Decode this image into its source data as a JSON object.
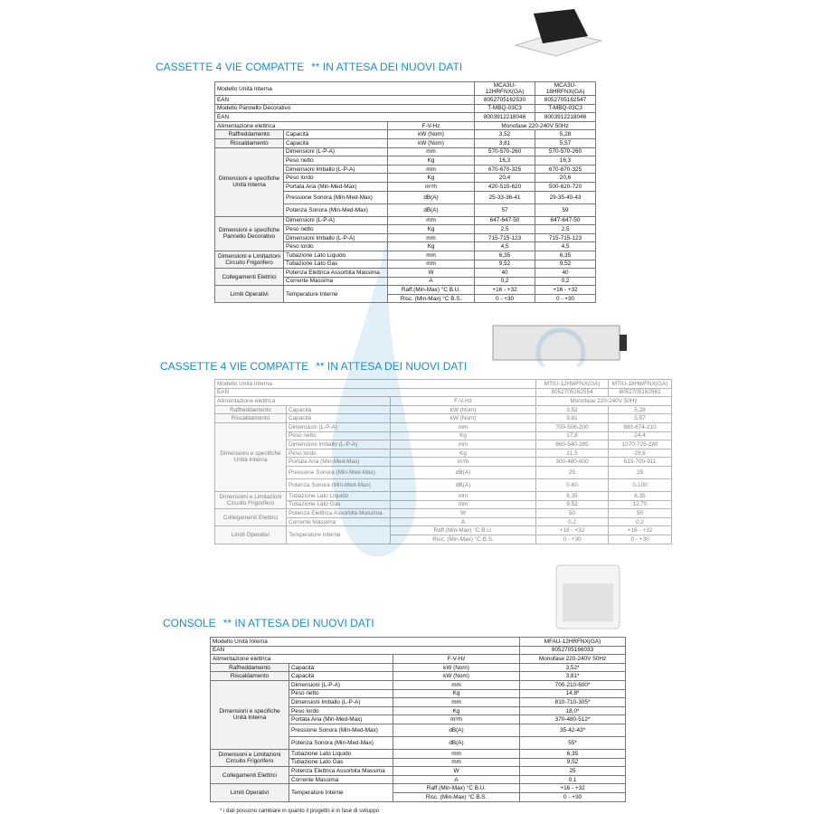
{
  "sections": [
    {
      "title": "CASSETTE 4 VIE COMPATTE",
      "note": "** IN ATTESA DEI NUOVI DATI",
      "rows": [
        [
          "Modello Unità Interna",
          "MCA3U-12HRFNX(GA)",
          "MCA3U-18HRFNX(GA)"
        ],
        [
          "EAN",
          "8052705162530",
          "8052705162547"
        ],
        [
          "Modello Pannello Decorativo",
          "T-MBQ-03C3",
          "T-MBQ-03C3"
        ],
        [
          "EAN",
          "8003912218046",
          "8003912218046"
        ],
        [
          "Alimentazione elettrica",
          "F-V-Hz",
          "Monofase 220-240V 50Hz"
        ],
        [
          "Raffreddamento",
          "Capacità",
          "kW  (Nom)",
          "3,52",
          "5,28"
        ],
        [
          "Riscaldamento",
          "Capacità",
          "kW  (Nom)",
          "3,81",
          "5,57"
        ],
        [
          "Dimensioni e specifiche Unità Interna",
          "Dimensioni (L-P-A)",
          "mm",
          "570-570-260",
          "570-570-260"
        ],
        [
          "Peso netto",
          "Kg",
          "16,3",
          "16,3"
        ],
        [
          "Dimensioni Imballo (L-P-A)",
          "mm",
          "670-670-325",
          "670-670-325"
        ],
        [
          "Peso lordo",
          "Kg",
          "20,4",
          "20,6"
        ],
        [
          "Portata Aria (Min-Med-Max)",
          "m³/h",
          "420-510-620",
          "500-620-720"
        ],
        [
          "Pressione Sonora (Min-Med-Max)",
          "dB(A)",
          "25-33-36-41",
          "29-35-40-43"
        ],
        [
          "Potenza Sonora (Min-Med-Max)",
          "dB(A)",
          "57",
          "59"
        ],
        [
          "Dimensioni e specifiche Pannello Decorativo",
          "Dimensioni (L-P-A)",
          "mm",
          "647-647-50",
          "647-647-50"
        ],
        [
          "Peso netto",
          "Kg",
          "2,5",
          "2,5"
        ],
        [
          "Dimensioni Imballo (L-P-A)",
          "mm",
          "715-715-123",
          "715-715-123"
        ],
        [
          "Peso lordo",
          "Kg",
          "4,5",
          "4,5"
        ],
        [
          "Dimensioni e Limitazioni Circuito Frigorifero",
          "Tubazione Lato Liquido",
          "mm",
          "6,35",
          "6,35"
        ],
        [
          "Tubazione Lato Gas",
          "mm",
          "9,52",
          "9,52"
        ],
        [
          "Collegamenti Elettrici",
          "Potenza Elettrica Assorbita Massima",
          "W",
          "40",
          "40"
        ],
        [
          "Corrente Massima",
          "A",
          "0,2",
          "0,2"
        ],
        [
          "Limiti Operativi",
          "Temperature Interne",
          "Raff.(Min-Max) °C B.U.",
          "+16 - +32",
          "+16 - +32"
        ],
        [
          "Risc. (Min-Max) °C B.S.",
          "0 - +30",
          "0 - +30"
        ]
      ]
    },
    {
      "title": "CASSETTE 4 VIE COMPATTE",
      "note": "** IN ATTESA DEI NUOVI DATI",
      "rows": [
        [
          "Modello Unità Interna",
          "MTIU-12HWFNX(GA)",
          "MTIU-18HWFNX(GA)"
        ],
        [
          "EAN",
          "8052705162554",
          "8052705162561"
        ],
        [
          "Alimentazione elettrica",
          "F-V-Hz",
          "Monofase 220-240V 50Hz"
        ],
        [
          "Raffreddamento",
          "Capacità",
          "kW  (Nom)",
          "3,52",
          "5,28"
        ],
        [
          "Riscaldamento",
          "Capacità",
          "kW  (Nom)",
          "3,81",
          "5,57"
        ],
        [
          "Dimensioni e specifiche Unità Interna",
          "Dimensioni (L-P-A)",
          "mm",
          "700-506-200",
          "880-674-210"
        ],
        [
          "Peso netto",
          "Kg",
          "17,8",
          "24,4"
        ],
        [
          "Dimensioni Imballo (L-P-A)",
          "mm",
          "860-540-285",
          "1070-725-280"
        ],
        [
          "Peso lordo",
          "Kg",
          "21,5",
          "29,6"
        ],
        [
          "Portata Aria (Min-Med-Max)",
          "m³/h",
          "300-480-600",
          "515-700-911"
        ],
        [
          "Pressione Sonora (Min-Med-Max)",
          "dB(A)",
          "25",
          "25"
        ],
        [
          "Potenza Sonora (Min-Med-Max)",
          "dB(A)",
          "0-60",
          "0-100"
        ],
        [
          "Dimensioni e Limitazioni Circuito Frigorifero",
          "Tubazione Lato Liquido",
          "mm",
          "6,35",
          "6,35"
        ],
        [
          "Tubazione Lato Gas",
          "mm",
          "9,52",
          "12,70"
        ],
        [
          "Collegamenti Elettrici",
          "Potenza Elettrica Assorbita Massima",
          "W",
          "50",
          "50"
        ],
        [
          "Corrente Massima",
          "A",
          "0,2",
          "0,2"
        ],
        [
          "Limiti Operativi",
          "Temperature Interne",
          "Raff.(Min-Max) °C B.U.",
          "+16 - +32",
          "+16 - +32"
        ],
        [
          "Risc. (Min-Max) °C B.S.",
          "0 - +30",
          "0 - +30"
        ]
      ]
    },
    {
      "title": "CONSOLE",
      "note": "** IN ATTESA DEI NUOVI DATI",
      "rows": [
        [
          "Modello Unità Interna",
          "MFAU-12HRFNX(GA)"
        ],
        [
          "EAN",
          "8052705166033"
        ],
        [
          "Alimentazione elettrica",
          "F-V-Hz",
          "Monofase 220-240V 50Hz"
        ],
        [
          "Raffreddamento",
          "Capacità",
          "kW  (Nom)",
          "3,52*"
        ],
        [
          "Riscaldamento",
          "Capacità",
          "kW  (Nom)",
          "3,81*"
        ],
        [
          "Dimensioni e specifiche Unità Interna",
          "Dimensioni (L-P-A)",
          "mm",
          "700-210-600*"
        ],
        [
          "Peso netto",
          "Kg",
          "14,8*"
        ],
        [
          "Dimensioni Imballo (L-P-A)",
          "mm",
          "810-710-305*"
        ],
        [
          "Peso lordo",
          "Kg",
          "18,0*"
        ],
        [
          "Portata Aria (Min-Med-Max)",
          "m³/h",
          "370-480-512*"
        ],
        [
          "Pressione Sonora (Min-Med-Max)",
          "dB(A)",
          "35-42-43*"
        ],
        [
          "Potenza Sonora (Min-Med-Max)",
          "dB(A)",
          "55*"
        ],
        [
          "Dimensioni e Limitazioni Circuito Frigorifero",
          "Tubazione Lato Liquido",
          "mm",
          "6,35"
        ],
        [
          "Tubazione Lato Gas",
          "mm",
          "9,52"
        ],
        [
          "Collegamenti Elettrici",
          "Potenza Elettrica Assorbita Massima",
          "W",
          "25"
        ],
        [
          "Corrente Massima",
          "A",
          "0,1"
        ],
        [
          "Limiti Operativi",
          "Temperature Interne",
          "Raff.(Min-Max) °C B.U.",
          "+16 - +32"
        ],
        [
          "Risc. (Min-Max) °C B.S.",
          "0 - +30"
        ]
      ]
    }
  ],
  "footnote": "* i dati possono cambiare in quanto il progetto è in fase di sviluppo"
}
